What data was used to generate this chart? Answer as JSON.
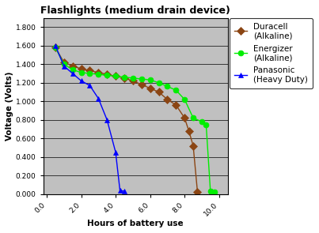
{
  "title": "Flashlights (medium drain device)",
  "xlabel": "Hours of battery use",
  "ylabel": "Voltage (Volts)",
  "ylim": [
    0.0,
    1.9
  ],
  "xlim": [
    -0.2,
    10.5
  ],
  "yticks": [
    0.0,
    0.2,
    0.4,
    0.6,
    0.8,
    1.0,
    1.2,
    1.4,
    1.6,
    1.8
  ],
  "xticks": [
    0.0,
    2.0,
    4.0,
    6.0,
    8.0,
    10.0
  ],
  "background_color": "#c0c0c0",
  "figure_width": 4.03,
  "figure_height": 2.95,
  "duracell": {
    "label": "Duracell\n(Alkaline)",
    "color": "#8B4513",
    "marker": "D",
    "markersize": 5,
    "x": [
      0.5,
      1.0,
      1.5,
      2.0,
      2.5,
      3.0,
      3.5,
      4.0,
      4.5,
      5.0,
      5.5,
      6.0,
      6.5,
      7.0,
      7.5,
      8.0,
      8.25,
      8.5,
      8.75
    ],
    "y": [
      1.58,
      1.42,
      1.38,
      1.35,
      1.33,
      1.31,
      1.29,
      1.27,
      1.25,
      1.22,
      1.18,
      1.14,
      1.1,
      1.02,
      0.96,
      0.82,
      0.68,
      0.52,
      0.02
    ]
  },
  "energizer": {
    "label": "Energizer\n(Alkaline)",
    "color": "#00ee00",
    "marker": "o",
    "markersize": 5,
    "x": [
      0.5,
      1.0,
      1.5,
      2.0,
      2.5,
      3.0,
      3.5,
      4.0,
      4.5,
      5.0,
      5.5,
      6.0,
      6.5,
      7.0,
      7.5,
      8.0,
      8.5,
      9.0,
      9.25,
      9.5,
      9.75
    ],
    "y": [
      1.58,
      1.4,
      1.34,
      1.31,
      1.3,
      1.29,
      1.28,
      1.27,
      1.26,
      1.25,
      1.24,
      1.23,
      1.2,
      1.16,
      1.12,
      1.02,
      0.82,
      0.78,
      0.75,
      0.03,
      0.02
    ]
  },
  "panasonic": {
    "label": "Panasonic\n(Heavy Duty)",
    "color": "#0000ff",
    "marker": "^",
    "markersize": 5,
    "x": [
      0.5,
      1.0,
      1.5,
      2.0,
      2.5,
      3.0,
      3.5,
      4.0,
      4.25,
      4.5
    ],
    "y": [
      1.6,
      1.38,
      1.3,
      1.22,
      1.17,
      1.03,
      0.8,
      0.45,
      0.04,
      0.03
    ]
  },
  "legend_fontsize": 7.5,
  "axis_fontsize": 7.5,
  "title_fontsize": 9
}
